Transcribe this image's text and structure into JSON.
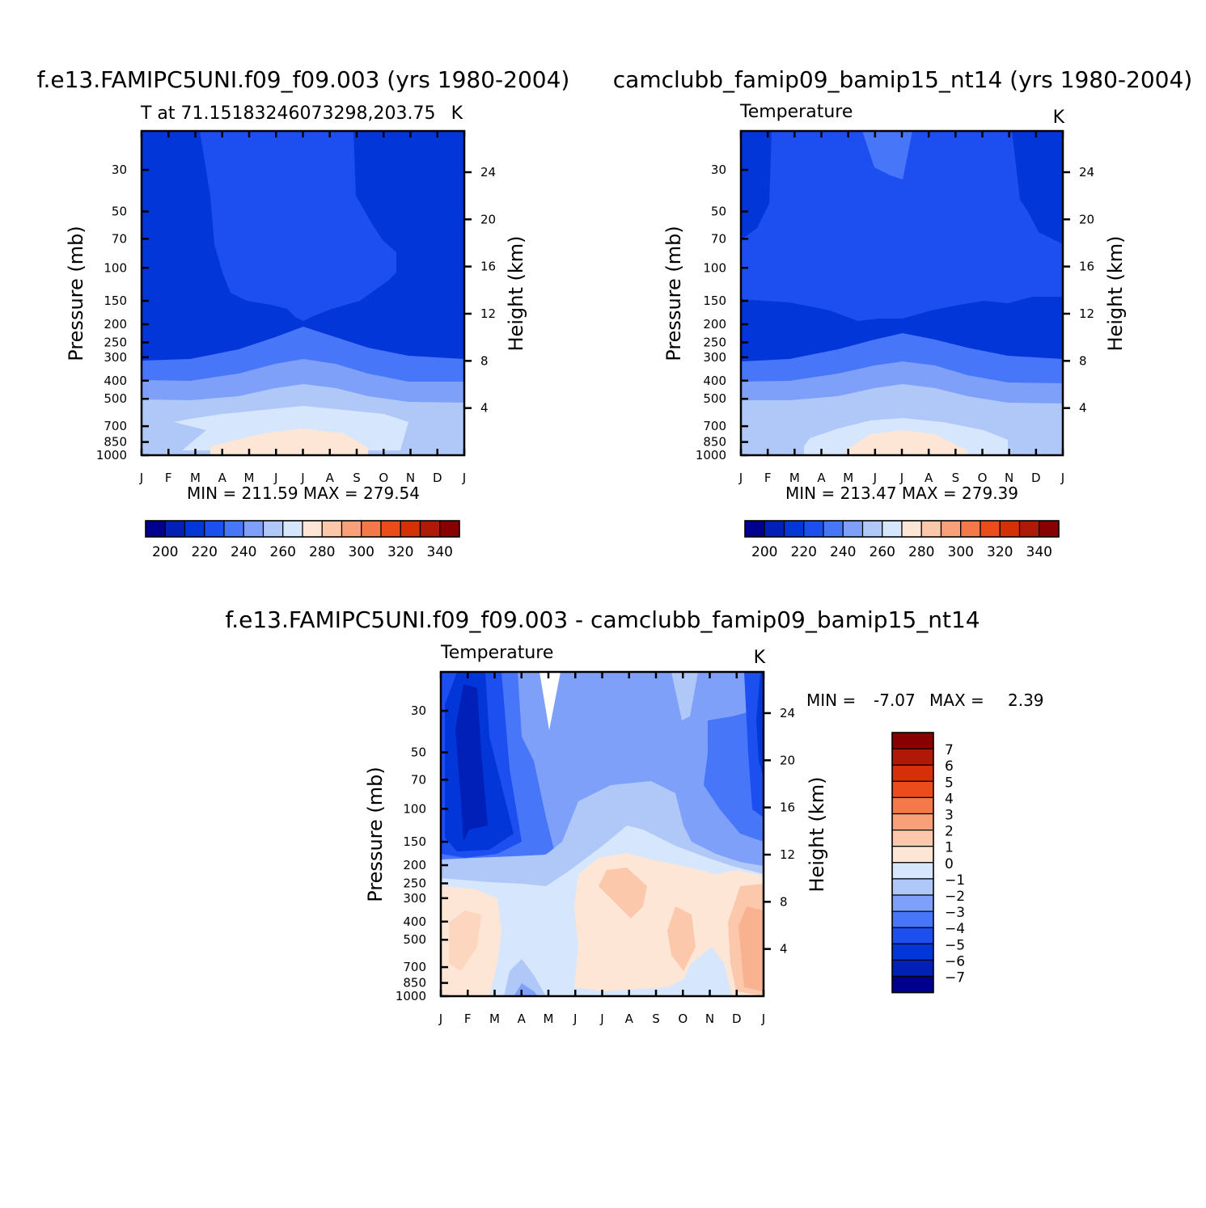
{
  "palette": {
    "temperature": [
      "#00008f",
      "#0120b8",
      "#0336d8",
      "#1d4ef0",
      "#4876f8",
      "#7ea0f8",
      "#b0c8f8",
      "#d6e6fc",
      "#fde6d6",
      "#fbc8ac",
      "#f8a07a",
      "#f5784a",
      "#ec4c1c",
      "#d63008",
      "#b01808",
      "#8a0000"
    ],
    "difference": [
      "#00008f",
      "#0120b8",
      "#0336d8",
      "#1d4ef0",
      "#4876f8",
      "#7ea0f8",
      "#b0c8f8",
      "#d6e6fc",
      "#fde6d6",
      "#fbc8ac",
      "#f8a07a",
      "#f5784a",
      "#ec4c1c",
      "#d63008",
      "#b01808",
      "#8a0000"
    ]
  },
  "chart_data": [
    {
      "type": "heatmap",
      "title": "f.e13.FAMIPC5UNI.f09_f09.003 (yrs 1980-2004)",
      "subtitle_left": "T at 71.15183246073298,203.75",
      "subtitle_right": "K",
      "xlabel": "",
      "ylabel": "Pressure (mb)",
      "ylabel_right": "Height (km)",
      "x_ticks": [
        "J",
        "F",
        "M",
        "A",
        "M",
        "J",
        "J",
        "A",
        "S",
        "O",
        "N",
        "D",
        "J"
      ],
      "y_ticks": [
        "30",
        "50",
        "70",
        "100",
        "150",
        "200",
        "250",
        "300",
        "400",
        "500",
        "700",
        "850",
        "1000"
      ],
      "y_ticks_right": [
        "24",
        "20",
        "16",
        "12",
        "8",
        "4"
      ],
      "ylim": [
        1000,
        20
      ],
      "min_max_text": "MIN = 211.59  MAX = 279.54",
      "min": 211.59,
      "max": 279.54,
      "colorbar": {
        "orientation": "horizontal",
        "labels": [
          "200",
          "220",
          "240",
          "260",
          "280",
          "300",
          "320",
          "340"
        ],
        "levels": [
          195,
          200,
          205,
          210,
          215,
          220,
          225,
          230,
          235,
          240,
          245,
          250,
          255,
          260,
          265,
          270,
          275,
          280,
          285,
          290,
          295,
          300,
          305,
          310,
          315,
          320,
          325,
          330,
          335,
          340,
          345
        ]
      }
    },
    {
      "type": "heatmap",
      "title": "camclubb_famip09_bamip15_nt14 (yrs 1980-2004)",
      "subtitle_left": "Temperature",
      "subtitle_right": "K",
      "xlabel": "",
      "ylabel": "Pressure (mb)",
      "ylabel_right": "Height (km)",
      "x_ticks": [
        "J",
        "F",
        "M",
        "A",
        "M",
        "J",
        "J",
        "A",
        "S",
        "O",
        "N",
        "D",
        "J"
      ],
      "y_ticks": [
        "30",
        "50",
        "70",
        "100",
        "150",
        "200",
        "250",
        "300",
        "400",
        "500",
        "700",
        "850",
        "1000"
      ],
      "y_ticks_right": [
        "24",
        "20",
        "16",
        "12",
        "8",
        "4"
      ],
      "ylim": [
        1000,
        20
      ],
      "min_max_text": "MIN = 213.47  MAX = 279.39",
      "min": 213.47,
      "max": 279.39,
      "colorbar": {
        "orientation": "horizontal",
        "labels": [
          "200",
          "220",
          "240",
          "260",
          "280",
          "300",
          "320",
          "340"
        ]
      }
    },
    {
      "type": "heatmap",
      "title": "f.e13.FAMIPC5UNI.f09_f09.003 - camclubb_famip09_bamip15_nt14",
      "subtitle_left": "Temperature",
      "subtitle_right": "K",
      "xlabel": "",
      "ylabel": "Pressure (mb)",
      "ylabel_right": "Height (km)",
      "x_ticks": [
        "J",
        "F",
        "M",
        "A",
        "M",
        "J",
        "J",
        "A",
        "S",
        "O",
        "N",
        "D",
        "J"
      ],
      "y_ticks": [
        "30",
        "50",
        "70",
        "100",
        "150",
        "200",
        "250",
        "300",
        "400",
        "500",
        "700",
        "850",
        "1000"
      ],
      "y_ticks_right": [
        "24",
        "20",
        "16",
        "12",
        "8",
        "4"
      ],
      "ylim": [
        1000,
        20
      ],
      "min_label": "MIN =",
      "min_value": "-7.07",
      "max_label": "MAX =",
      "max_value": "2.39",
      "min": -7.07,
      "max": 2.39,
      "colorbar": {
        "orientation": "vertical",
        "labels": [
          "7",
          "6",
          "5",
          "4",
          "3",
          "2",
          "1",
          "0",
          "-1",
          "-2",
          "-3",
          "-4",
          "-5",
          "-6",
          "-7"
        ]
      }
    }
  ]
}
